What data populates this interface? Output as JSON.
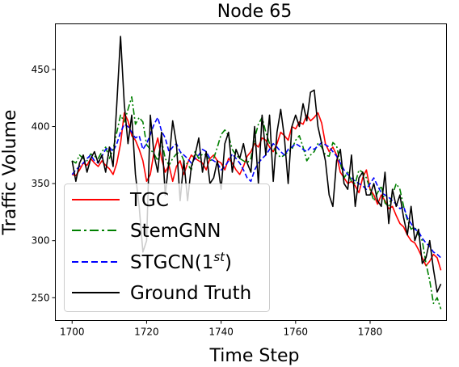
{
  "chart_data": {
    "type": "line",
    "title": "Node 65",
    "xlabel": "Time Step",
    "ylabel": "Traffic Volume",
    "xlim": [
      1695.5,
      2000.5
    ],
    "ylim": [
      230,
      490
    ],
    "xticks": [
      1700,
      1720,
      1740,
      1760,
      1780
    ],
    "yticks": [
      250,
      300,
      350,
      400,
      450
    ],
    "legend": "lower-left",
    "x": [
      1700,
      1701,
      1702,
      1703,
      1704,
      1705,
      1706,
      1707,
      1708,
      1709,
      1710,
      1711,
      1712,
      1713,
      1714,
      1715,
      1716,
      1717,
      1718,
      1719,
      1720,
      1721,
      1722,
      1723,
      1724,
      1725,
      1726,
      1727,
      1728,
      1729,
      1730,
      1731,
      1732,
      1733,
      1734,
      1735,
      1736,
      1737,
      1738,
      1739,
      1740,
      1741,
      1742,
      1743,
      1744,
      1745,
      1746,
      1747,
      1748,
      1749,
      1750,
      1751,
      1752,
      1753,
      1754,
      1755,
      1756,
      1757,
      1758,
      1759,
      1760,
      1761,
      1762,
      1763,
      1764,
      1765,
      1766,
      1767,
      1768,
      1769,
      1770,
      1771,
      1772,
      1773,
      1774,
      1775,
      1776,
      1777,
      1778,
      1779,
      1780,
      1781,
      1782,
      1783,
      1784,
      1785,
      1786,
      1787,
      1788,
      1789,
      1790,
      1791,
      1792,
      1793,
      1794,
      1795,
      1796,
      1797,
      1798,
      1799
    ],
    "series": [
      {
        "name": "TGC",
        "color": "#ff0000",
        "dash": "solid",
        "values": [
          358,
          357,
          362,
          368,
          366,
          372,
          368,
          365,
          370,
          366,
          363,
          358,
          368,
          385,
          412,
          405,
          392,
          388,
          380,
          370,
          352,
          358,
          378,
          390,
          372,
          360,
          366,
          352,
          365,
          370,
          358,
          368,
          375,
          372,
          370,
          368,
          362,
          372,
          375,
          370,
          368,
          362,
          372,
          368,
          362,
          358,
          365,
          374,
          378,
          385,
          382,
          390,
          388,
          382,
          378,
          385,
          395,
          392,
          388,
          400,
          398,
          404,
          402,
          410,
          405,
          408,
          412,
          403,
          385,
          378,
          382,
          375,
          360,
          355,
          350,
          352,
          348,
          342,
          355,
          362,
          345,
          340,
          332,
          340,
          335,
          328,
          330,
          322,
          315,
          312,
          305,
          300,
          298,
          292,
          285,
          278,
          282,
          288,
          285,
          274
        ]
      },
      {
        "name": "StemGNN",
        "color": "#008000",
        "dash": "dashdot",
        "values": [
          370,
          368,
          375,
          372,
          370,
          376,
          374,
          372,
          378,
          382,
          372,
          380,
          395,
          410,
          404,
          415,
          426,
          402,
          408,
          404,
          384,
          380,
          376,
          370,
          388,
          372,
          366,
          372,
          376,
          378,
          370,
          367,
          362,
          378,
          372,
          376,
          375,
          370,
          372,
          382,
          393,
          397,
          392,
          380,
          375,
          372,
          370,
          368,
          372,
          390,
          402,
          408,
          395,
          385,
          382,
          376,
          373,
          375,
          378,
          380,
          388,
          392,
          382,
          370,
          375,
          378,
          385,
          382,
          375,
          374,
          386,
          383,
          368,
          355,
          360,
          352,
          350,
          362,
          360,
          355,
          345,
          335,
          342,
          348,
          333,
          330,
          340,
          350,
          345,
          330,
          318,
          310,
          312,
          305,
          300,
          280,
          265,
          245,
          250,
          240
        ]
      },
      {
        "name": "STGCN(1st)",
        "color": "#0000ff",
        "dash": "dashed",
        "values": [
          358,
          362,
          365,
          368,
          372,
          375,
          370,
          368,
          374,
          380,
          382,
          378,
          385,
          395,
          402,
          400,
          395,
          390,
          392,
          380,
          385,
          393,
          402,
          408,
          396,
          390,
          378,
          382,
          385,
          378,
          375,
          372,
          368,
          372,
          375,
          380,
          378,
          372,
          370,
          368,
          362,
          365,
          370,
          376,
          372,
          368,
          362,
          355,
          352,
          362,
          368,
          372,
          375,
          380,
          385,
          382,
          378,
          375,
          380,
          382,
          385,
          383,
          380,
          378,
          382,
          380,
          383,
          386,
          384,
          382,
          378,
          374,
          368,
          362,
          358,
          355,
          352,
          350,
          348,
          345,
          350,
          355,
          348,
          342,
          340,
          338,
          335,
          332,
          328,
          330,
          320,
          315,
          310,
          308,
          302,
          298,
          295,
          290,
          288,
          285
        ]
      },
      {
        "name": "Ground Truth",
        "color": "#000000",
        "dash": "solid",
        "values": [
          370,
          352,
          368,
          375,
          360,
          372,
          378,
          368,
          375,
          360,
          382,
          365,
          420,
          479,
          420,
          385,
          410,
          358,
          330,
          290,
          300,
          410,
          375,
          360,
          395,
          340,
          370,
          405,
          385,
          335,
          370,
          335,
          365,
          375,
          390,
          360,
          378,
          350,
          355,
          370,
          345,
          385,
          395,
          360,
          380,
          372,
          385,
          368,
          360,
          400,
          350,
          410,
          375,
          410,
          352,
          395,
          415,
          390,
          350,
          400,
          410,
          400,
          420,
          405,
          430,
          432,
          400,
          385,
          370,
          340,
          330,
          370,
          380,
          350,
          345,
          375,
          330,
          355,
          360,
          340,
          340,
          350,
          335,
          330,
          360,
          315,
          345,
          330,
          340,
          320,
          305,
          330,
          300,
          310,
          280,
          285,
          300,
          275,
          255,
          262
        ]
      }
    ]
  }
}
